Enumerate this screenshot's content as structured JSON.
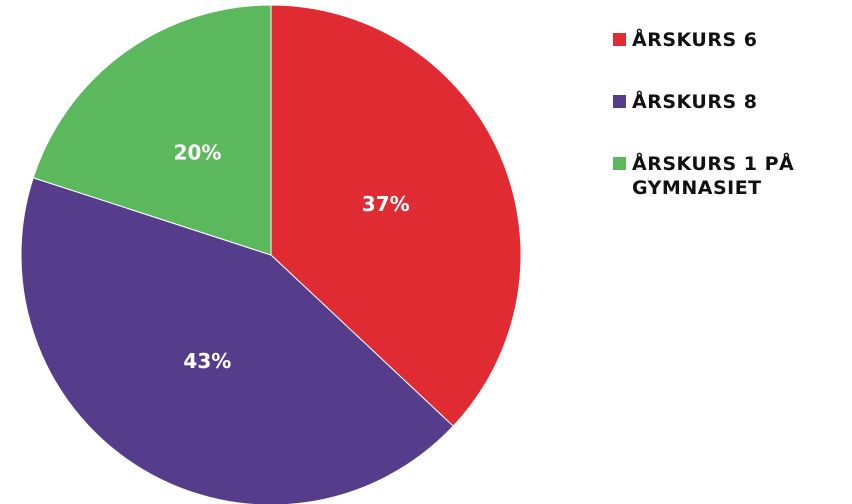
{
  "chart_data": {
    "type": "pie",
    "categories": [
      "ÅRSKURS 6",
      "ÅRSKURS 8",
      "ÅRSKURS 1 PÅ GYMNASIET"
    ],
    "values": [
      37,
      43,
      20
    ],
    "value_labels": [
      "37%",
      "43%",
      "20%"
    ],
    "colors": [
      "#e02b32",
      "#553d8c",
      "#5cb85c"
    ],
    "legend": "right"
  }
}
